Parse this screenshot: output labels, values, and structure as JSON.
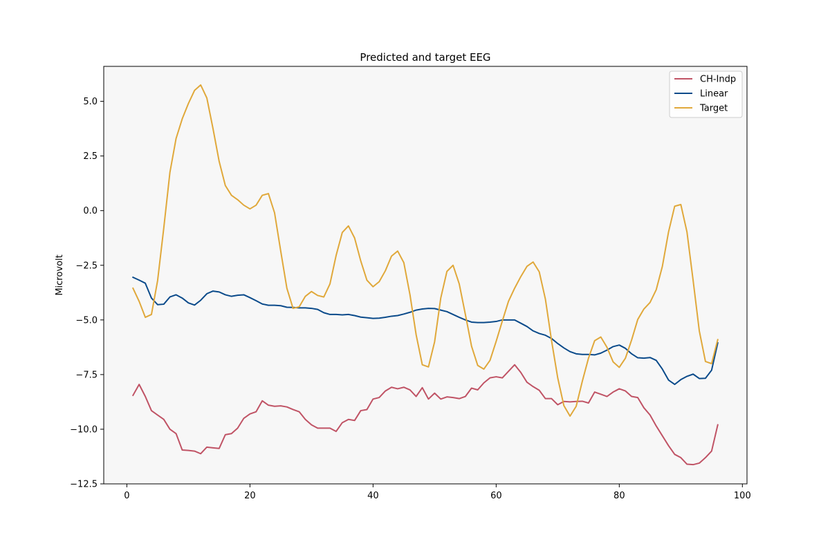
{
  "chart_data": {
    "type": "line",
    "title": "Predicted and target EEG",
    "xlabel": "",
    "ylabel": "Microvolt",
    "xlim": [
      -3.75,
      100.75
    ],
    "ylim": [
      -12.5,
      6.6
    ],
    "xticks": [
      0,
      20,
      40,
      60,
      80,
      100
    ],
    "yticks": [
      5.0,
      2.5,
      0.0,
      -2.5,
      -5.0,
      -7.5,
      -10.0,
      -12.5
    ],
    "ytick_labels": [
      "5.0",
      "2.5",
      "0.0",
      "−2.5",
      "−5.0",
      "−7.5",
      "−10.0",
      "−12.5"
    ],
    "grid": false,
    "legend_position": "top-right",
    "background": "#f7f7f7",
    "x": [
      1,
      2,
      3,
      4,
      5,
      6,
      7,
      8,
      9,
      10,
      11,
      12,
      13,
      14,
      15,
      16,
      17,
      18,
      19,
      20,
      21,
      22,
      23,
      24,
      25,
      26,
      27,
      28,
      29,
      30,
      31,
      32,
      33,
      34,
      35,
      36,
      37,
      38,
      39,
      40,
      41,
      42,
      43,
      44,
      45,
      46,
      47,
      48,
      49,
      50,
      51,
      52,
      53,
      54,
      55,
      56,
      57,
      58,
      59,
      60,
      61,
      62,
      63,
      64,
      65,
      66,
      67,
      68,
      69,
      70,
      71,
      72,
      73,
      74,
      75,
      76,
      77,
      78,
      79,
      80,
      81,
      82,
      83,
      84,
      85,
      86,
      87,
      88,
      89,
      90,
      91,
      92,
      93,
      94,
      95,
      96
    ],
    "series": [
      {
        "name": "CH-Indp",
        "color": "#c05365",
        "values": [
          -8.45,
          -7.95,
          -8.5,
          -9.15,
          -9.35,
          -9.55,
          -10.0,
          -10.2,
          -10.95,
          -10.97,
          -11.0,
          -11.12,
          -10.82,
          -10.85,
          -10.88,
          -10.25,
          -10.2,
          -9.95,
          -9.5,
          -9.3,
          -9.2,
          -8.7,
          -8.9,
          -8.95,
          -8.93,
          -8.98,
          -9.1,
          -9.2,
          -9.55,
          -9.8,
          -9.95,
          -9.95,
          -9.95,
          -10.1,
          -9.7,
          -9.55,
          -9.6,
          -9.15,
          -9.1,
          -8.62,
          -8.55,
          -8.25,
          -8.08,
          -8.15,
          -8.08,
          -8.2,
          -8.5,
          -8.1,
          -8.62,
          -8.35,
          -8.62,
          -8.52,
          -8.55,
          -8.6,
          -8.5,
          -8.12,
          -8.2,
          -7.88,
          -7.65,
          -7.6,
          -7.65,
          -7.35,
          -7.05,
          -7.4,
          -7.85,
          -8.05,
          -8.22,
          -8.6,
          -8.6,
          -8.88,
          -8.73,
          -8.75,
          -8.73,
          -8.72,
          -8.8,
          -8.3,
          -8.4,
          -8.5,
          -8.3,
          -8.15,
          -8.25,
          -8.5,
          -8.55,
          -9.02,
          -9.35,
          -9.85,
          -10.3,
          -10.75,
          -11.15,
          -11.3,
          -11.6,
          -11.62,
          -11.55,
          -11.3,
          -11.0,
          -9.8
        ]
      },
      {
        "name": "Linear",
        "color": "#0a4a8a",
        "values": [
          -3.05,
          -3.18,
          -3.32,
          -4.0,
          -4.3,
          -4.28,
          -3.95,
          -3.85,
          -4.0,
          -4.22,
          -4.32,
          -4.1,
          -3.8,
          -3.68,
          -3.72,
          -3.85,
          -3.92,
          -3.87,
          -3.85,
          -3.98,
          -4.12,
          -4.27,
          -4.33,
          -4.33,
          -4.35,
          -4.42,
          -4.43,
          -4.45,
          -4.45,
          -4.47,
          -4.52,
          -4.67,
          -4.75,
          -4.75,
          -4.77,
          -4.75,
          -4.8,
          -4.87,
          -4.9,
          -4.93,
          -4.92,
          -4.88,
          -4.83,
          -4.8,
          -4.73,
          -4.65,
          -4.55,
          -4.5,
          -4.47,
          -4.48,
          -4.55,
          -4.62,
          -4.75,
          -4.88,
          -5.0,
          -5.1,
          -5.12,
          -5.12,
          -5.1,
          -5.07,
          -5.0,
          -5.0,
          -5.0,
          -5.15,
          -5.3,
          -5.5,
          -5.62,
          -5.7,
          -5.85,
          -6.08,
          -6.28,
          -6.45,
          -6.55,
          -6.58,
          -6.58,
          -6.6,
          -6.52,
          -6.38,
          -6.22,
          -6.15,
          -6.3,
          -6.55,
          -6.73,
          -6.75,
          -6.72,
          -6.85,
          -7.25,
          -7.75,
          -7.95,
          -7.73,
          -7.58,
          -7.48,
          -7.68,
          -7.67,
          -7.3,
          -6.05
        ]
      },
      {
        "name": "Target",
        "color": "#e0a83a",
        "values": [
          -3.55,
          -4.15,
          -4.88,
          -4.75,
          -3.2,
          -0.8,
          1.75,
          3.3,
          4.2,
          4.9,
          5.5,
          5.75,
          5.15,
          3.75,
          2.25,
          1.15,
          0.7,
          0.5,
          0.25,
          0.08,
          0.25,
          0.7,
          0.78,
          -0.1,
          -1.85,
          -3.55,
          -4.47,
          -4.4,
          -3.92,
          -3.7,
          -3.88,
          -3.95,
          -3.35,
          -2.05,
          -1.0,
          -0.7,
          -1.25,
          -2.3,
          -3.18,
          -3.48,
          -3.25,
          -2.75,
          -2.08,
          -1.85,
          -2.38,
          -3.85,
          -5.68,
          -7.05,
          -7.15,
          -6.0,
          -4.0,
          -2.78,
          -2.5,
          -3.35,
          -4.75,
          -6.2,
          -7.08,
          -7.25,
          -6.85,
          -5.98,
          -5.05,
          -4.15,
          -3.55,
          -3.02,
          -2.55,
          -2.35,
          -2.8,
          -4.05,
          -5.95,
          -7.65,
          -8.92,
          -9.4,
          -8.95,
          -7.8,
          -6.75,
          -5.95,
          -5.78,
          -6.25,
          -6.92,
          -7.17,
          -6.75,
          -5.92,
          -4.98,
          -4.5,
          -4.2,
          -3.62,
          -2.55,
          -0.98,
          0.2,
          0.28,
          -0.98,
          -3.2,
          -5.5,
          -6.9,
          -7.0,
          -5.9
        ]
      }
    ]
  }
}
